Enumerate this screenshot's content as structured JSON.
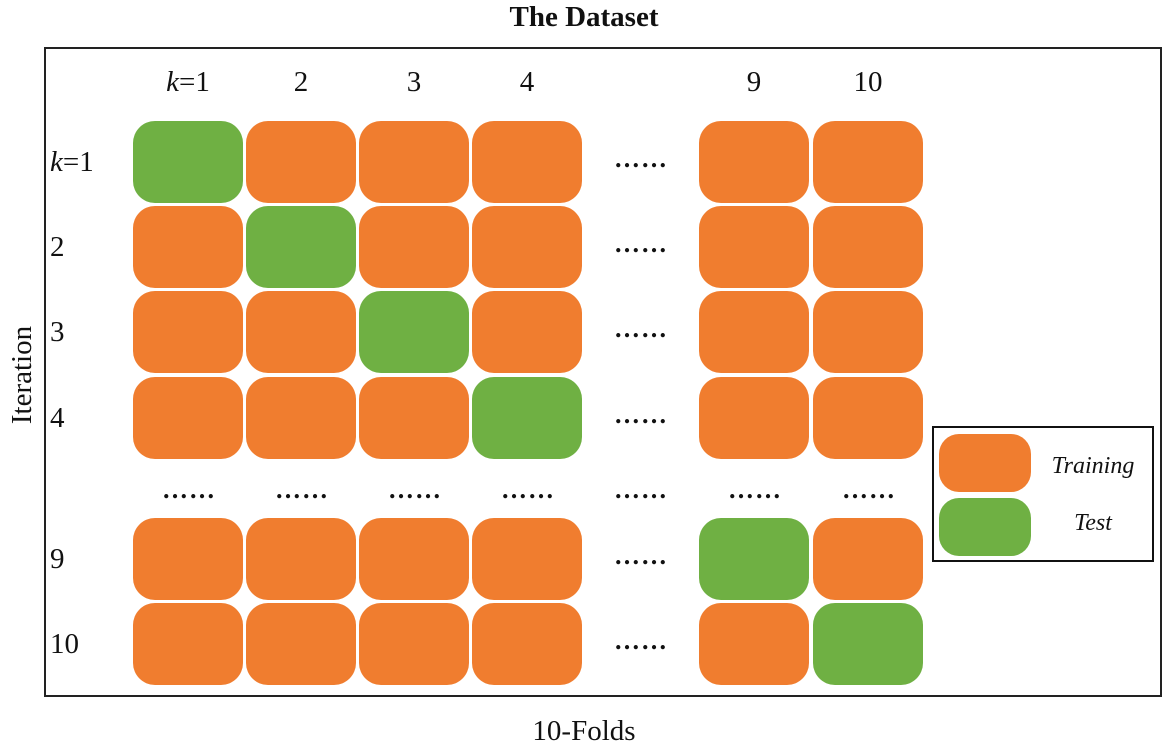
{
  "title": "The Dataset",
  "xlabel": "10-Folds",
  "ylabel": "Iteration",
  "columns": [
    {
      "k": "k",
      "rest": "=1"
    },
    {
      "k": "",
      "rest": "2"
    },
    {
      "k": "",
      "rest": "3"
    },
    {
      "k": "",
      "rest": "4"
    },
    {
      "k": "",
      "rest": "9"
    },
    {
      "k": "",
      "rest": "10"
    }
  ],
  "rows": [
    {
      "k": "k",
      "rest": "=1",
      "cells": [
        "test",
        "train",
        "train",
        "train",
        "train",
        "train"
      ]
    },
    {
      "k": "",
      "rest": "2",
      "cells": [
        "train",
        "test",
        "train",
        "train",
        "train",
        "train"
      ]
    },
    {
      "k": "",
      "rest": "3",
      "cells": [
        "train",
        "train",
        "test",
        "train",
        "train",
        "train"
      ]
    },
    {
      "k": "",
      "rest": "4",
      "cells": [
        "train",
        "train",
        "train",
        "test",
        "train",
        "train"
      ]
    },
    {
      "k": "",
      "rest": "9",
      "cells": [
        "train",
        "train",
        "train",
        "train",
        "test",
        "train"
      ]
    },
    {
      "k": "",
      "rest": "10",
      "cells": [
        "train",
        "train",
        "train",
        "train",
        "train",
        "test"
      ]
    }
  ],
  "ellipsis": "……",
  "legend": {
    "training_label": "Training",
    "test_label": "Test"
  },
  "colors": {
    "training": "#f07d2f",
    "test": "#6fb043"
  }
}
